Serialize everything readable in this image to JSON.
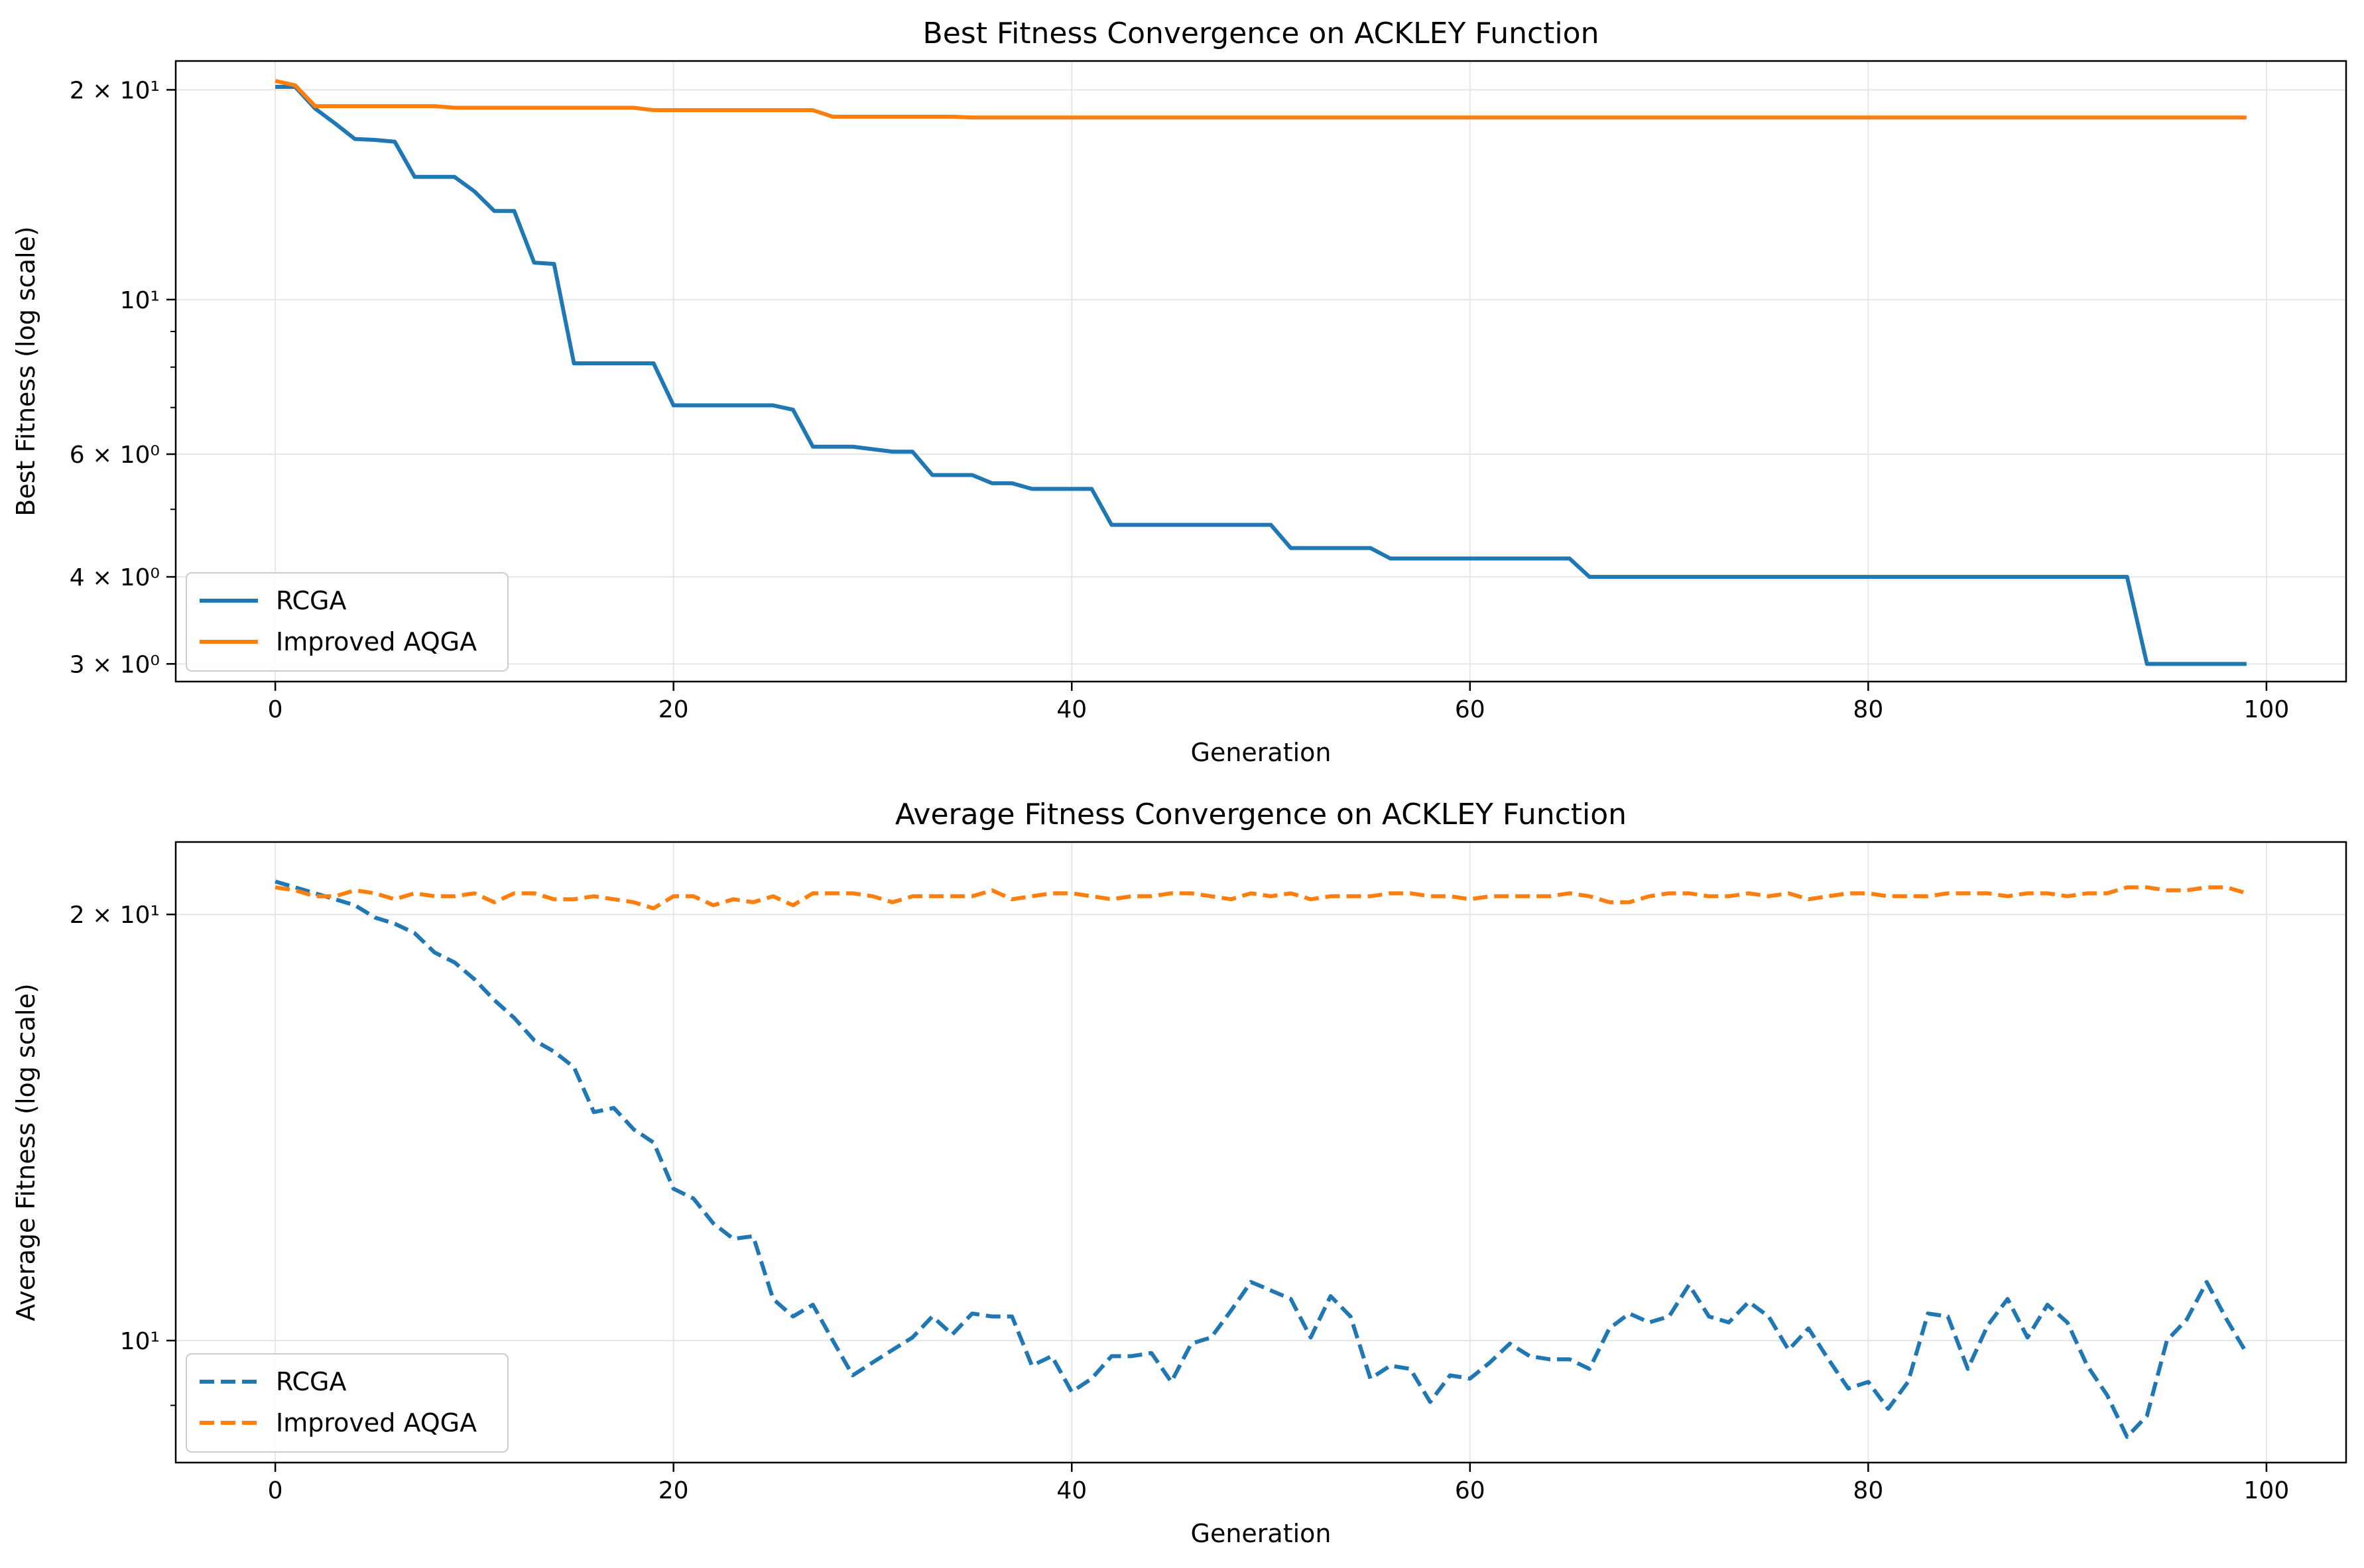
{
  "figure": {
    "background": "#ffffff"
  },
  "colors": {
    "RCGA": "#1f77b4",
    "Improved AQGA": "#ff7f0e",
    "grid": "#e6e6e6"
  },
  "chart_data": [
    {
      "type": "line",
      "title": "Best Fitness Convergence on ACKLEY Function",
      "xlabel": "Generation",
      "ylabel": "Best Fitness (log scale)",
      "yscale": "log",
      "xlim": [
        -5,
        104
      ],
      "ylim": [
        2.83,
        22.0
      ],
      "xticks": [
        0,
        20,
        40,
        60,
        80,
        100
      ],
      "xtick_labels": [
        "0",
        "20",
        "40",
        "60",
        "80",
        "100"
      ],
      "yticks": [
        3,
        4,
        6,
        10,
        20
      ],
      "ytick_labels": [
        "3 × 10⁰",
        "4 × 10⁰",
        "6 × 10⁰",
        "10¹",
        "2 × 10¹"
      ],
      "grid": true,
      "legend": {
        "position": "lower-left",
        "entries": [
          "RCGA",
          "Improved AQGA"
        ]
      },
      "series": [
        {
          "name": "RCGA",
          "style": "solid",
          "values": [
            20.2,
            20.2,
            18.8,
            17.9,
            17.0,
            16.95,
            16.85,
            15.0,
            15.0,
            15.0,
            14.3,
            13.4,
            13.4,
            11.3,
            11.25,
            8.1,
            8.1,
            8.1,
            8.1,
            8.1,
            7.05,
            7.05,
            7.05,
            7.05,
            7.05,
            7.05,
            6.95,
            6.15,
            6.15,
            6.15,
            6.1,
            6.05,
            6.05,
            5.6,
            5.6,
            5.6,
            5.45,
            5.45,
            5.35,
            5.35,
            5.35,
            5.35,
            4.75,
            4.75,
            4.75,
            4.75,
            4.75,
            4.75,
            4.75,
            4.75,
            4.75,
            4.4,
            4.4,
            4.4,
            4.4,
            4.4,
            4.25,
            4.25,
            4.25,
            4.25,
            4.25,
            4.25,
            4.25,
            4.25,
            4.25,
            4.25,
            4.0,
            4.0,
            4.0,
            4.0,
            4.0,
            4.0,
            4.0,
            4.0,
            4.0,
            4.0,
            4.0,
            4.0,
            4.0,
            4.0,
            4.0,
            4.0,
            4.0,
            4.0,
            4.0,
            4.0,
            4.0,
            4.0,
            4.0,
            4.0,
            4.0,
            4.0,
            4.0,
            4.0,
            3.0,
            3.0,
            3.0,
            3.0,
            3.0,
            3.0
          ]
        },
        {
          "name": "Improved AQGA",
          "style": "solid",
          "values": [
            20.6,
            20.3,
            18.95,
            18.95,
            18.95,
            18.95,
            18.95,
            18.95,
            18.95,
            18.85,
            18.85,
            18.85,
            18.85,
            18.85,
            18.85,
            18.85,
            18.85,
            18.85,
            18.85,
            18.7,
            18.7,
            18.7,
            18.7,
            18.7,
            18.7,
            18.7,
            18.7,
            18.7,
            18.3,
            18.3,
            18.3,
            18.3,
            18.3,
            18.3,
            18.3,
            18.25,
            18.25,
            18.25,
            18.25,
            18.25,
            18.25,
            18.25,
            18.25,
            18.25,
            18.25,
            18.25,
            18.25,
            18.25,
            18.25,
            18.25,
            18.25,
            18.25,
            18.25,
            18.25,
            18.25,
            18.25,
            18.25,
            18.25,
            18.25,
            18.25,
            18.25,
            18.25,
            18.25,
            18.25,
            18.25,
            18.25,
            18.25,
            18.25,
            18.25,
            18.25,
            18.25,
            18.25,
            18.25,
            18.25,
            18.25,
            18.25,
            18.25,
            18.25,
            18.25,
            18.25,
            18.25,
            18.25,
            18.25,
            18.25,
            18.25,
            18.25,
            18.25,
            18.25,
            18.25,
            18.25,
            18.25,
            18.25,
            18.25,
            18.25,
            18.25,
            18.25,
            18.25,
            18.25,
            18.25,
            18.25
          ]
        }
      ]
    },
    {
      "type": "line",
      "title": "Average Fitness Convergence on ACKLEY Function",
      "xlabel": "Generation",
      "ylabel": "Average Fitness (log scale)",
      "yscale": "log",
      "xlim": [
        -5,
        104
      ],
      "ylim": [
        8.2,
        22.5
      ],
      "xticks": [
        0,
        20,
        40,
        60,
        80,
        100
      ],
      "xtick_labels": [
        "0",
        "20",
        "40",
        "60",
        "80",
        "100"
      ],
      "yticks": [
        10,
        20
      ],
      "ytick_labels": [
        "10¹",
        "2 × 10¹"
      ],
      "grid": true,
      "legend": {
        "position": "lower-left",
        "entries": [
          "RCGA",
          "Improved AQGA"
        ]
      },
      "series": [
        {
          "name": "RCGA",
          "style": "dashed",
          "values": [
            21.1,
            20.9,
            20.7,
            20.5,
            20.3,
            19.9,
            19.7,
            19.4,
            18.8,
            18.5,
            18.0,
            17.4,
            16.9,
            16.3,
            16.0,
            15.6,
            14.5,
            14.6,
            14.1,
            13.8,
            12.8,
            12.6,
            12.1,
            11.8,
            11.85,
            10.7,
            10.4,
            10.6,
            10.0,
            9.45,
            9.65,
            9.85,
            10.05,
            10.4,
            10.1,
            10.45,
            10.4,
            10.4,
            9.6,
            9.75,
            9.2,
            9.4,
            9.75,
            9.75,
            9.8,
            9.35,
            9.95,
            10.05,
            10.5,
            11.0,
            10.85,
            10.7,
            10.05,
            10.75,
            10.4,
            9.4,
            9.6,
            9.55,
            9.05,
            9.45,
            9.4,
            9.65,
            9.95,
            9.75,
            9.7,
            9.7,
            9.55,
            10.2,
            10.45,
            10.3,
            10.4,
            10.95,
            10.4,
            10.3,
            10.65,
            10.4,
            9.85,
            10.2,
            9.7,
            9.25,
            9.35,
            8.95,
            9.35,
            10.45,
            10.4,
            9.55,
            10.25,
            10.7,
            10.05,
            10.6,
            10.3,
            9.6,
            9.15,
            8.55,
            8.85,
            10.0,
            10.35,
            11.0,
            10.35,
            9.8
          ]
        },
        {
          "name": "Improved AQGA",
          "style": "dashed",
          "values": [
            20.9,
            20.8,
            20.6,
            20.6,
            20.8,
            20.7,
            20.5,
            20.7,
            20.6,
            20.6,
            20.7,
            20.4,
            20.7,
            20.7,
            20.5,
            20.5,
            20.6,
            20.5,
            20.4,
            20.2,
            20.6,
            20.6,
            20.3,
            20.5,
            20.4,
            20.6,
            20.3,
            20.7,
            20.7,
            20.7,
            20.6,
            20.4,
            20.6,
            20.6,
            20.6,
            20.6,
            20.8,
            20.5,
            20.6,
            20.7,
            20.7,
            20.6,
            20.5,
            20.6,
            20.6,
            20.7,
            20.7,
            20.6,
            20.5,
            20.7,
            20.6,
            20.7,
            20.5,
            20.6,
            20.6,
            20.6,
            20.7,
            20.7,
            20.6,
            20.6,
            20.5,
            20.6,
            20.6,
            20.6,
            20.6,
            20.7,
            20.6,
            20.4,
            20.4,
            20.6,
            20.7,
            20.7,
            20.6,
            20.6,
            20.7,
            20.6,
            20.7,
            20.5,
            20.6,
            20.7,
            20.7,
            20.6,
            20.6,
            20.6,
            20.7,
            20.7,
            20.7,
            20.6,
            20.7,
            20.7,
            20.6,
            20.7,
            20.7,
            20.9,
            20.9,
            20.8,
            20.8,
            20.9,
            20.9,
            20.7
          ]
        }
      ]
    }
  ]
}
